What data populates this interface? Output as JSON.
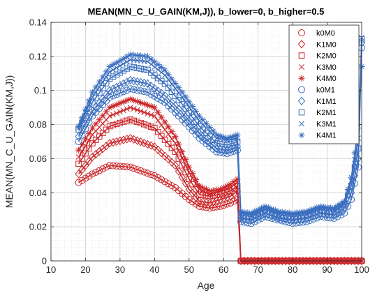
{
  "chart_data": {
    "type": "line",
    "title": "MEAN(MN_C_U_GAIN(KM,J)), b_lower=0, b_higher=0.5",
    "xlabel": "Age",
    "ylabel": "MEAN(MN_C_U_GAIN(KM,J))",
    "xlim": [
      10,
      100
    ],
    "ylim": [
      0,
      0.14
    ],
    "xticks": [
      10,
      20,
      30,
      40,
      50,
      60,
      70,
      80,
      90,
      100
    ],
    "yticks": [
      0,
      0.02,
      0.04,
      0.06,
      0.08,
      0.1,
      0.12,
      0.14
    ],
    "ytick_labels": [
      "0",
      "0.02",
      "0.04",
      "0.06",
      "0.08",
      "0.1",
      "0.12",
      "0.14"
    ],
    "grid": true,
    "minor_grid": true,
    "legend_position": "top-right",
    "colors": {
      "m0": "#cc2529",
      "m1": "#3b6fbf"
    },
    "series": [
      {
        "name": "k0M0",
        "marker": "circle",
        "color": "#cc2529",
        "x": [
          18,
          22,
          27,
          33,
          40,
          46,
          50,
          53,
          56,
          59,
          62,
          64,
          64.5,
          65,
          70,
          80,
          90,
          100
        ],
        "y": [
          0.046,
          0.051,
          0.056,
          0.055,
          0.05,
          0.043,
          0.036,
          0.032,
          0.031,
          0.032,
          0.034,
          0.036,
          0.018,
          0.0,
          0.0,
          0.0,
          0.0,
          0.0
        ]
      },
      {
        "name": "K1M0",
        "marker": "diamond",
        "color": "#cc2529",
        "x": [
          18,
          22,
          27,
          33,
          40,
          46,
          50,
          53,
          56,
          59,
          62,
          64,
          64.5,
          65,
          70,
          80,
          90,
          100
        ],
        "y": [
          0.051,
          0.061,
          0.069,
          0.072,
          0.067,
          0.056,
          0.042,
          0.035,
          0.034,
          0.036,
          0.038,
          0.041,
          0.02,
          0.0,
          0.0,
          0.0,
          0.0,
          0.0
        ]
      },
      {
        "name": "K2M0",
        "marker": "square",
        "color": "#cc2529",
        "x": [
          18,
          22,
          27,
          33,
          40,
          46,
          50,
          53,
          56,
          59,
          62,
          64,
          64.5,
          65,
          70,
          80,
          90,
          100
        ],
        "y": [
          0.057,
          0.069,
          0.079,
          0.083,
          0.078,
          0.064,
          0.048,
          0.039,
          0.038,
          0.039,
          0.041,
          0.044,
          0.022,
          0.0,
          0.0,
          0.0,
          0.0,
          0.0
        ]
      },
      {
        "name": "K3M0",
        "marker": "x",
        "color": "#cc2529",
        "x": [
          18,
          22,
          27,
          33,
          40,
          46,
          50,
          53,
          56,
          59,
          62,
          64,
          64.5,
          65,
          70,
          80,
          90,
          100
        ],
        "y": [
          0.061,
          0.074,
          0.085,
          0.09,
          0.085,
          0.069,
          0.052,
          0.042,
          0.039,
          0.041,
          0.043,
          0.046,
          0.023,
          0.0,
          0.0,
          0.0,
          0.0,
          0.0
        ]
      },
      {
        "name": "K4M0",
        "marker": "asterisk",
        "color": "#cc2529",
        "x": [
          18,
          22,
          27,
          33,
          40,
          46,
          50,
          53,
          56,
          59,
          62,
          64,
          64.5,
          65,
          70,
          80,
          90,
          100
        ],
        "y": [
          0.065,
          0.078,
          0.09,
          0.095,
          0.09,
          0.073,
          0.055,
          0.044,
          0.041,
          0.042,
          0.045,
          0.048,
          0.024,
          0.0,
          0.0,
          0.0,
          0.0,
          0.0
        ]
      },
      {
        "name": "k0M1",
        "marker": "circle",
        "color": "#3b6fbf",
        "x": [
          18,
          22,
          27,
          33,
          38,
          43,
          48,
          53,
          58,
          61,
          64,
          64.5,
          65,
          68,
          72,
          76,
          80,
          84,
          88,
          92,
          95,
          97,
          99,
          100
        ],
        "y": [
          0.07,
          0.085,
          0.096,
          0.101,
          0.099,
          0.093,
          0.083,
          0.072,
          0.064,
          0.063,
          0.065,
          0.045,
          0.023,
          0.022,
          0.026,
          0.024,
          0.022,
          0.023,
          0.026,
          0.025,
          0.028,
          0.036,
          0.055,
          0.125
        ]
      },
      {
        "name": "K1M1",
        "marker": "diamond",
        "color": "#3b6fbf",
        "x": [
          18,
          22,
          27,
          33,
          38,
          43,
          48,
          53,
          58,
          61,
          64,
          64.5,
          65,
          68,
          72,
          76,
          80,
          84,
          88,
          92,
          95,
          97,
          99,
          100
        ],
        "y": [
          0.073,
          0.088,
          0.1,
          0.106,
          0.104,
          0.097,
          0.087,
          0.075,
          0.066,
          0.065,
          0.067,
          0.046,
          0.025,
          0.024,
          0.028,
          0.025,
          0.024,
          0.025,
          0.028,
          0.027,
          0.031,
          0.04,
          0.06,
          0.128
        ]
      },
      {
        "name": "K2M1",
        "marker": "square",
        "color": "#3b6fbf",
        "x": [
          18,
          22,
          27,
          33,
          38,
          43,
          48,
          53,
          58,
          61,
          64,
          64.5,
          65,
          68,
          72,
          76,
          80,
          84,
          88,
          92,
          95,
          97,
          99,
          100
        ],
        "y": [
          0.077,
          0.093,
          0.107,
          0.114,
          0.112,
          0.104,
          0.092,
          0.079,
          0.069,
          0.068,
          0.07,
          0.048,
          0.027,
          0.026,
          0.03,
          0.027,
          0.026,
          0.027,
          0.03,
          0.029,
          0.033,
          0.044,
          0.066,
          0.13
        ]
      },
      {
        "name": "K3M1",
        "marker": "x",
        "color": "#3b6fbf",
        "x": [
          18,
          22,
          27,
          33,
          38,
          43,
          48,
          53,
          58,
          61,
          64,
          64.5,
          65,
          68,
          72,
          76,
          80,
          84,
          88,
          92,
          95,
          97,
          99,
          100
        ],
        "y": [
          0.078,
          0.096,
          0.111,
          0.118,
          0.117,
          0.109,
          0.096,
          0.082,
          0.072,
          0.071,
          0.072,
          0.05,
          0.028,
          0.027,
          0.031,
          0.028,
          0.027,
          0.028,
          0.031,
          0.03,
          0.034,
          0.047,
          0.072,
          0.131
        ]
      },
      {
        "name": "K4M1",
        "marker": "asterisk",
        "color": "#3b6fbf",
        "x": [
          18,
          22,
          27,
          33,
          38,
          43,
          48,
          53,
          58,
          61,
          64,
          64.5,
          65,
          68,
          72,
          76,
          80,
          84,
          88,
          92,
          95,
          97,
          99,
          100
        ],
        "y": [
          0.079,
          0.099,
          0.114,
          0.121,
          0.12,
          0.112,
          0.099,
          0.085,
          0.074,
          0.072,
          0.074,
          0.051,
          0.029,
          0.028,
          0.032,
          0.029,
          0.028,
          0.029,
          0.032,
          0.031,
          0.035,
          0.049,
          0.078,
          0.114
        ]
      }
    ]
  }
}
